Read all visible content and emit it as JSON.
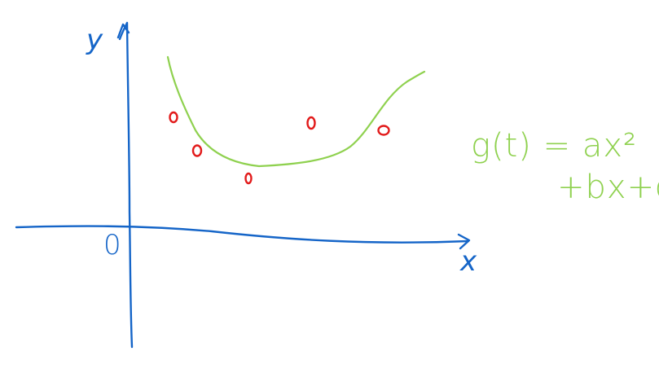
{
  "labels": {
    "y_axis": "y",
    "x_axis": "x",
    "origin": "0"
  },
  "formula": {
    "line1": "g(t) = ax²",
    "line2": "+bx+c"
  },
  "data_points": [
    {
      "label": "0"
    },
    {
      "label": "0"
    },
    {
      "label": "0"
    },
    {
      "label": "0"
    },
    {
      "label": "0"
    }
  ],
  "colors": {
    "axes": "#1565c8",
    "curve": "#8fd14f",
    "points": "#e21b1b",
    "background": "#ffffff"
  }
}
